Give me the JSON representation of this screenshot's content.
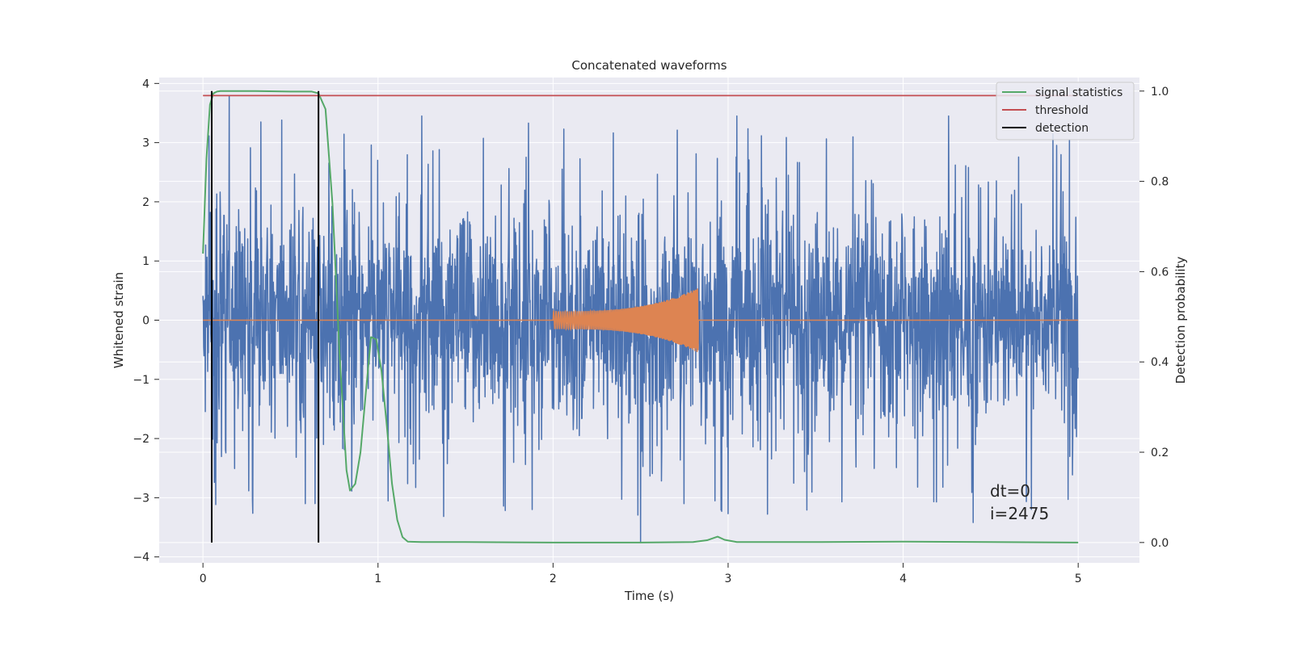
{
  "chart_data": {
    "type": "line",
    "title": "Concatenated waveforms",
    "xlabel": "Time (s)",
    "ylabel": "Whitened strain",
    "y2label": "Detection probability",
    "xlim": [
      -0.25,
      5.35
    ],
    "ylim": [
      -4.1,
      4.1
    ],
    "y2lim": [
      -0.045,
      1.03
    ],
    "xticks": [
      0,
      1,
      2,
      3,
      4,
      5
    ],
    "yticks": [
      -4,
      -3,
      -2,
      -1,
      0,
      1,
      2,
      3,
      4
    ],
    "y2ticks": [
      0.0,
      0.2,
      0.4,
      0.6,
      0.8,
      1.0
    ],
    "grid": true,
    "legend_position": "top-right",
    "colors": {
      "noise": "#4c72b0",
      "waveform": "#dd8452",
      "signal_statistics": "#55a868",
      "threshold": "#c44e52",
      "detection": "#000000",
      "background": "#eaeaf2"
    },
    "series": [
      {
        "kind": "noise",
        "axis": "left",
        "x_range": [
          0,
          5
        ],
        "core_amplitude": 0.75,
        "peak_amplitude": 3.8,
        "notable_peaks": [
          [
            0.15,
            3.78
          ],
          [
            0.33,
            3.35
          ],
          [
            0.45,
            3.38
          ],
          [
            1.25,
            3.45
          ],
          [
            1.86,
            3.33
          ],
          [
            3.05,
            3.45
          ],
          [
            4.26,
            3.45
          ],
          [
            4.95,
            3.05
          ]
        ],
        "notable_troughs": [
          [
            2.5,
            -3.75
          ],
          [
            3.0,
            -3.27
          ],
          [
            4.4,
            -3.42
          ],
          [
            1.88,
            -3.2
          ]
        ]
      },
      {
        "kind": "waveform",
        "axis": "left",
        "x_range": [
          2.0,
          2.83
        ],
        "start_amplitude": 0.15,
        "end_amplitude": 0.55
      },
      {
        "name": "signal statistics",
        "axis": "right",
        "x": [
          0,
          0.02,
          0.04,
          0.06,
          0.08,
          0.1,
          0.3,
          0.5,
          0.62,
          0.66,
          0.7,
          0.74,
          0.78,
          0.82,
          0.84,
          0.87,
          0.9,
          0.93,
          0.96,
          0.99,
          1.02,
          1.05,
          1.08,
          1.11,
          1.14,
          1.17,
          1.25,
          1.5,
          2.0,
          2.5,
          2.8,
          2.88,
          2.94,
          2.98,
          3.05,
          3.5,
          4.0,
          4.5,
          5.0
        ],
        "y": [
          0.64,
          0.85,
          0.97,
          0.995,
          0.999,
          1.0,
          1.0,
          0.999,
          0.999,
          0.995,
          0.96,
          0.75,
          0.42,
          0.16,
          0.115,
          0.13,
          0.2,
          0.33,
          0.455,
          0.45,
          0.38,
          0.26,
          0.13,
          0.05,
          0.012,
          0.002,
          0.001,
          0.001,
          0.0,
          0.0,
          0.001,
          0.005,
          0.013,
          0.006,
          0.001,
          0.001,
          0.002,
          0.001,
          0.0
        ]
      },
      {
        "name": "threshold",
        "axis": "right",
        "x": [
          0,
          5
        ],
        "y": [
          0.99,
          0.99
        ]
      },
      {
        "name": "detection",
        "axis": "right",
        "vlines": [
          0.05,
          0.66
        ],
        "y_range": [
          0.0,
          1.0
        ]
      }
    ],
    "annotations": [
      "dt=0",
      "i=2475"
    ]
  }
}
